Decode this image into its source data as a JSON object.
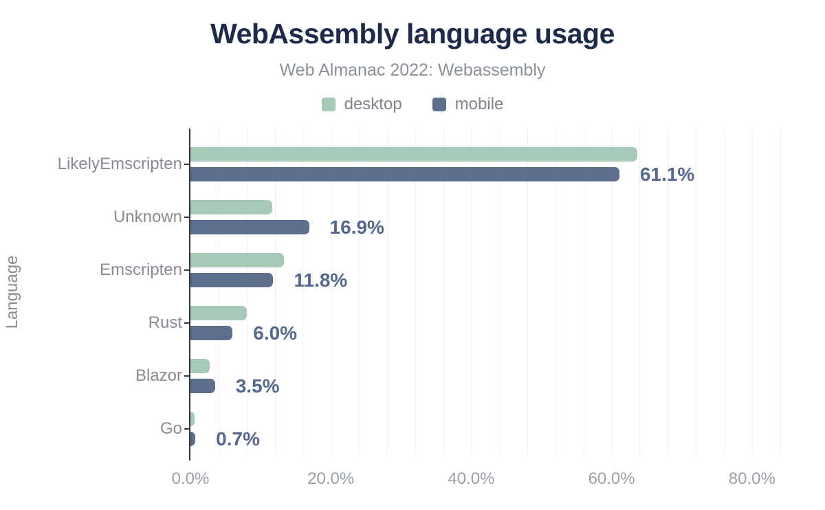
{
  "chart_data": {
    "type": "bar",
    "orientation": "horizontal",
    "title": "WebAssembly language usage",
    "subtitle": "Web Almanac 2022: Webassembly",
    "ylabel": "Language",
    "categories": [
      "LikelyEmscripten",
      "Unknown",
      "Emscripten",
      "Rust",
      "Blazor",
      "Go"
    ],
    "series": [
      {
        "name": "desktop",
        "color": "#a7c9b8",
        "values": [
          63.7,
          11.7,
          13.3,
          8.0,
          2.7,
          0.6
        ]
      },
      {
        "name": "mobile",
        "color": "#5e6f8d",
        "values": [
          61.1,
          16.9,
          11.8,
          6.0,
          3.5,
          0.7
        ]
      }
    ],
    "data_labels": {
      "labeled_series": "mobile",
      "values": [
        "61.1%",
        "16.9%",
        "11.8%",
        "6.0%",
        "3.5%",
        "0.7%"
      ],
      "color": "#54678e"
    },
    "x_tick_labels": [
      "0.0%",
      "20.0%",
      "40.0%",
      "60.0%",
      "80.0%"
    ],
    "x_tick_values": [
      0,
      20,
      40,
      60,
      80
    ],
    "xlim": [
      0,
      85.7
    ],
    "grid": {
      "minor_step": 4,
      "color": "#f1f1f5",
      "on": true
    },
    "legend_position": "top",
    "axis_color": "#33373d",
    "text_colors": {
      "title": "#1e2a49",
      "subtitle": "#8b909a",
      "category": "#878b93",
      "tick": "#9ba0a8",
      "legend": "#7e838c"
    }
  }
}
